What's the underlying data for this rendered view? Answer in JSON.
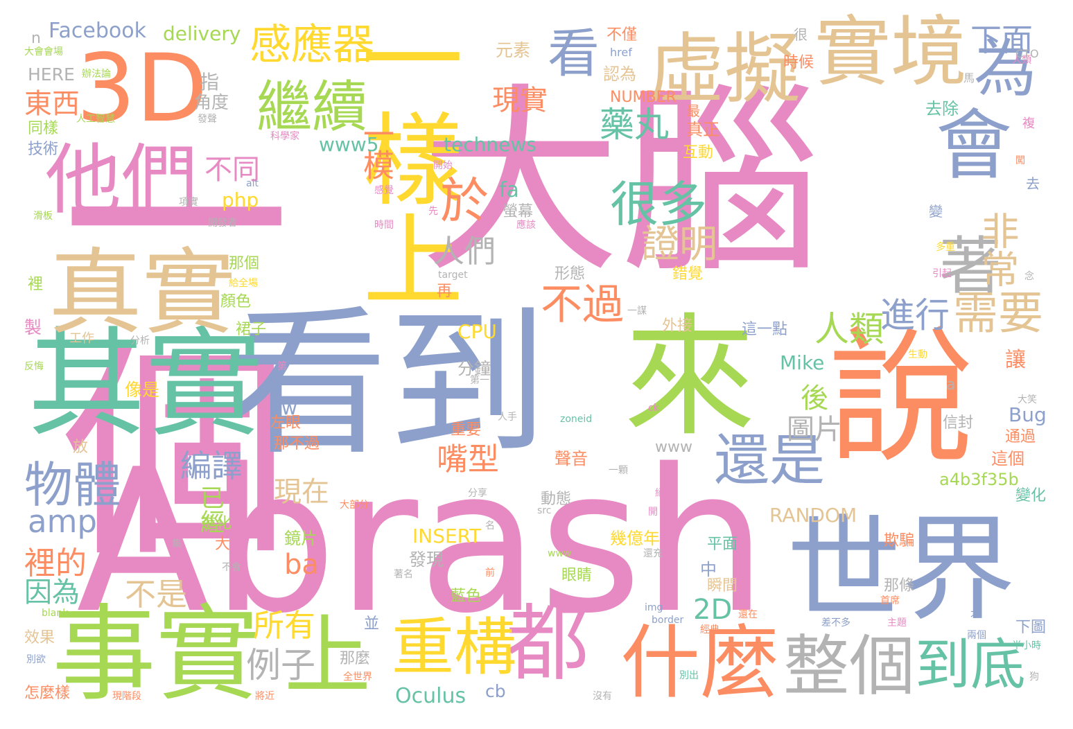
{
  "colors": {
    "pink": "#e78ac3",
    "orange": "#fc8d62",
    "teal": "#66c2a5",
    "blue": "#8da0cb",
    "green": "#a6d854",
    "yellow": "#ffd92f",
    "tan": "#e5c494",
    "gray": "#b3b3b3"
  },
  "words": [
    {
      "id": "w-danao",
      "text": "大腦",
      "color": "pink"
    },
    {
      "id": "w-yige",
      "text": "一個",
      "color": "pink"
    },
    {
      "id": "w-abrash",
      "text": "Abrash",
      "color": "pink"
    },
    {
      "id": "w-kandao",
      "text": "看到",
      "color": "blue"
    },
    {
      "id": "w-lai",
      "text": "來",
      "color": "green"
    },
    {
      "id": "w-shuo",
      "text": "說",
      "color": "orange"
    },
    {
      "id": "w-qishi",
      "text": "其實",
      "color": "teal"
    },
    {
      "id": "w-shishi",
      "text": "事實",
      "color": "green"
    },
    {
      "id": "w-zhenshi",
      "text": "真實",
      "color": "tan"
    },
    {
      "id": "w-3d",
      "text": "3D",
      "color": "orange"
    },
    {
      "id": "w-yiyangshang",
      "text": "一樣上",
      "color": "yellow"
    },
    {
      "id": "w-xuni",
      "text": "虛擬",
      "color": "tan"
    },
    {
      "id": "w-shijing",
      "text": "實境",
      "color": "tan"
    },
    {
      "id": "w-tamen",
      "text": "他們",
      "color": "pink"
    },
    {
      "id": "w-shijie",
      "text": "世界",
      "color": "blue"
    },
    {
      "id": "w-hui",
      "text": "會",
      "color": "blue"
    },
    {
      "id": "w-zhe",
      "text": "著",
      "color": "gray"
    },
    {
      "id": "w-wei",
      "text": "為",
      "color": "blue"
    },
    {
      "id": "w-kan",
      "text": "看",
      "color": "blue"
    },
    {
      "id": "w-dou",
      "text": "都",
      "color": "pink"
    },
    {
      "id": "w-shenme",
      "text": "什麼",
      "color": "orange"
    },
    {
      "id": "w-zhengge",
      "text": "整個",
      "color": "gray"
    },
    {
      "id": "w-zhonggou",
      "text": "重構",
      "color": "yellow"
    },
    {
      "id": "w-shang",
      "text": "上",
      "color": "green"
    },
    {
      "id": "w-daodi",
      "text": "到底",
      "color": "teal"
    },
    {
      "id": "w-haishi",
      "text": "還是",
      "color": "blue"
    },
    {
      "id": "w-jixu",
      "text": "繼續",
      "color": "green"
    },
    {
      "id": "w-ganyingqi",
      "text": "感應器",
      "color": "yellow"
    },
    {
      "id": "w-wuti",
      "text": "物體",
      "color": "blue"
    },
    {
      "id": "w-yu",
      "text": "於",
      "color": "orange"
    },
    {
      "id": "w-henduo",
      "text": "很多",
      "color": "teal"
    },
    {
      "id": "w-buguo",
      "text": "不過",
      "color": "orange"
    },
    {
      "id": "w-yaowan",
      "text": "藥丸",
      "color": "teal"
    },
    {
      "id": "w-zhengming",
      "text": "證明",
      "color": "tan"
    },
    {
      "id": "w-feichang",
      "text": "非常",
      "color": "tan"
    },
    {
      "id": "w-xuyao",
      "text": "需要",
      "color": "tan"
    },
    {
      "id": "w-jinxing",
      "text": "進行",
      "color": "blue"
    },
    {
      "id": "w-renlei",
      "text": "人類",
      "color": "green"
    },
    {
      "id": "w-renmen",
      "text": "人們",
      "color": "gray"
    },
    {
      "id": "w-dongxi",
      "text": "東西",
      "color": "orange"
    },
    {
      "id": "w-xiamian",
      "text": "下面",
      "color": "blue"
    },
    {
      "id": "w-yimo",
      "text": "一模",
      "color": "orange"
    },
    {
      "id": "w-xianshi",
      "text": "現實",
      "color": "orange"
    },
    {
      "id": "w-butong",
      "text": "不同",
      "color": "pink"
    },
    {
      "id": "w-amp",
      "text": "amp",
      "color": "blue"
    },
    {
      "id": "w-bianyi",
      "text": "編譯",
      "color": "blue"
    },
    {
      "id": "w-lide",
      "text": "裡的",
      "color": "orange"
    },
    {
      "id": "w-yinwei",
      "text": "因為",
      "color": "teal"
    },
    {
      "id": "w-bushi",
      "text": "不是",
      "color": "tan"
    },
    {
      "id": "w-suoyou",
      "text": "所有",
      "color": "yellow"
    },
    {
      "id": "w-lizi",
      "text": "例子",
      "color": "gray"
    },
    {
      "id": "w-2d",
      "text": "2D",
      "color": "teal"
    },
    {
      "id": "w-hou",
      "text": "後",
      "color": "green"
    },
    {
      "id": "w-zuixing",
      "text": "嘴型",
      "color": "orange"
    },
    {
      "id": "w-tupian",
      "text": "圖片",
      "color": "gray"
    },
    {
      "id": "w-xianzai",
      "text": "現在",
      "color": "tan"
    },
    {
      "id": "w-yijing",
      "text": "已經",
      "color": "green"
    },
    {
      "id": "w-ba",
      "text": "ba",
      "color": "orange"
    },
    {
      "id": "w-oculus",
      "text": "Oculus",
      "color": "teal"
    },
    {
      "id": "w-cb",
      "text": "cb",
      "color": "blue"
    },
    {
      "id": "w-facebook",
      "text": "Facebook",
      "color": "blue"
    },
    {
      "id": "w-delivery",
      "text": "delivery",
      "color": "green"
    },
    {
      "id": "w-technews",
      "text": "technews",
      "color": "teal"
    },
    {
      "id": "w-www5",
      "text": "www5",
      "color": "teal"
    },
    {
      "id": "w-php",
      "text": "php",
      "color": "yellow"
    },
    {
      "id": "w-fa",
      "text": "fa",
      "color": "teal"
    },
    {
      "id": "w-cpu",
      "text": "CPU",
      "color": "yellow"
    },
    {
      "id": "w-mike",
      "text": "Mike",
      "color": "teal"
    },
    {
      "id": "w-bug",
      "text": "Bug",
      "color": "blue"
    },
    {
      "id": "w-random",
      "text": "RANDOM",
      "color": "tan"
    },
    {
      "id": "w-insert",
      "text": "INSERT",
      "color": "yellow"
    },
    {
      "id": "w-number",
      "text": "NUMBER",
      "color": "orange"
    },
    {
      "id": "w-a4b3f35b",
      "text": "a4b3f35b",
      "color": "green"
    },
    {
      "id": "w-www",
      "text": "www",
      "color": "gray"
    },
    {
      "id": "w-tw",
      "text": "tw",
      "color": "blue"
    },
    {
      "id": "w-here",
      "text": "HERE",
      "color": "gray"
    },
    {
      "id": "w-n",
      "text": "n",
      "color": "gray"
    },
    {
      "id": "w-yuansu",
      "text": "元素",
      "color": "tan"
    },
    {
      "id": "w-zhi",
      "text": "指",
      "color": "gray"
    },
    {
      "id": "w-jiaodu",
      "text": "角度",
      "color": "gray"
    },
    {
      "id": "w-renwei",
      "text": "認為",
      "color": "tan"
    },
    {
      "id": "w-bujin",
      "text": "不僅",
      "color": "orange"
    },
    {
      "id": "w-zhenzheng",
      "text": "真正",
      "color": "orange"
    },
    {
      "id": "w-hudong",
      "text": "互動",
      "color": "yellow"
    },
    {
      "id": "w-shihou",
      "text": "時候",
      "color": "orange"
    },
    {
      "id": "w-quchu",
      "text": "去除",
      "color": "teal"
    },
    {
      "id": "w-tongyang",
      "text": "同樣",
      "color": "green"
    },
    {
      "id": "w-jishu",
      "text": "技術",
      "color": "blue"
    },
    {
      "id": "w-yingmu",
      "text": "螢幕",
      "color": "gray"
    },
    {
      "id": "w-nage",
      "text": "那個",
      "color": "green"
    },
    {
      "id": "w-yanse",
      "text": "顏色",
      "color": "green"
    },
    {
      "id": "w-qunzi",
      "text": "裙子",
      "color": "green"
    },
    {
      "id": "w-xingtai",
      "text": "形態",
      "color": "gray"
    },
    {
      "id": "w-cuojue",
      "text": "錯覺",
      "color": "yellow"
    },
    {
      "id": "w-waijie",
      "text": "外接",
      "color": "tan"
    },
    {
      "id": "w-zheyidian",
      "text": "這一點",
      "color": "blue"
    },
    {
      "id": "w-fenzhong",
      "text": "分鐘",
      "color": "gray"
    },
    {
      "id": "w-xiangshi",
      "text": "像是",
      "color": "yellow"
    },
    {
      "id": "w-zuoyan",
      "text": "左眼",
      "color": "orange"
    },
    {
      "id": "w-nabuguo",
      "text": "那不過",
      "color": "orange"
    },
    {
      "id": "w-jinhua",
      "text": "進化",
      "color": "green"
    },
    {
      "id": "w-da",
      "text": "大",
      "color": "orange"
    },
    {
      "id": "w-jingpian",
      "text": "鏡片",
      "color": "green"
    },
    {
      "id": "w-faxian",
      "text": "發現",
      "color": "gray"
    },
    {
      "id": "w-jiyinian",
      "text": "幾億年",
      "color": "yellow"
    },
    {
      "id": "w-shengyin",
      "text": "聲音",
      "color": "orange"
    },
    {
      "id": "w-dongtai",
      "text": "動態",
      "color": "gray"
    },
    {
      "id": "w-zhongyao",
      "text": "重要",
      "color": "orange"
    },
    {
      "id": "w-pingmian",
      "text": "平面",
      "color": "teal"
    },
    {
      "id": "w-zhong",
      "text": "中",
      "color": "blue"
    },
    {
      "id": "w-shunjian",
      "text": "瞬間",
      "color": "tan"
    },
    {
      "id": "w-qipian",
      "text": "欺騙",
      "color": "orange"
    },
    {
      "id": "w-natiao",
      "text": "那條",
      "color": "gray"
    },
    {
      "id": "w-yanjing",
      "text": "眼睛",
      "color": "green"
    },
    {
      "id": "w-lanse",
      "text": "藍色",
      "color": "green"
    },
    {
      "id": "w-name",
      "text": "那麼",
      "color": "gray"
    },
    {
      "id": "w-bing",
      "text": "並",
      "color": "blue"
    },
    {
      "id": "w-rang",
      "text": "讓",
      "color": "orange"
    },
    {
      "id": "w-zhege",
      "text": "這個",
      "color": "orange"
    },
    {
      "id": "w-bianhua",
      "text": "變化",
      "color": "teal"
    },
    {
      "id": "w-tongguo",
      "text": "通過",
      "color": "orange"
    },
    {
      "id": "w-xinfeng",
      "text": "信封",
      "color": "gray"
    },
    {
      "id": "w-xiatu",
      "text": "下圖",
      "color": "blue"
    },
    {
      "id": "w-xiaoguo",
      "text": "效果",
      "color": "tan"
    },
    {
      "id": "w-zenmeyang",
      "text": "怎麼樣",
      "color": "orange"
    },
    {
      "id": "w-fang",
      "text": "放",
      "color": "tan"
    },
    {
      "id": "w-zai",
      "text": "再",
      "color": "orange"
    },
    {
      "id": "w-gongzuo",
      "text": "工作",
      "color": "tan"
    },
    {
      "id": "w-zhi2",
      "text": "製",
      "color": "pink"
    },
    {
      "id": "w-li",
      "text": "裡",
      "color": "green"
    },
    {
      "id": "w-a",
      "text": "a",
      "color": "gray"
    },
    {
      "id": "w-hen",
      "text": "很",
      "color": "gray"
    },
    {
      "id": "w-qu",
      "text": "去",
      "color": "blue"
    },
    {
      "id": "w-bian",
      "text": "變",
      "color": "blue"
    },
    {
      "id": "w-fu",
      "text": "複",
      "color": "pink"
    },
    {
      "id": "w-zui",
      "text": "最",
      "color": "orange"
    },
    {
      "id": "w-ma",
      "text": "馬",
      "color": "gray"
    },
    {
      "id": "w-cto",
      "text": "CTO",
      "color": "gray"
    },
    {
      "id": "w-href",
      "text": "href",
      "color": "blue"
    },
    {
      "id": "w-kexuejia",
      "text": "科學家",
      "color": "pink"
    },
    {
      "id": "w-rengongzhihui",
      "text": "人工智慧",
      "color": "green"
    },
    {
      "id": "w-dahuihuichang",
      "text": "大會會場",
      "color": "green"
    },
    {
      "id": "w-banfalun",
      "text": "辦法論",
      "color": "green"
    },
    {
      "id": "w-fasheng",
      "text": "發聲",
      "color": "gray"
    },
    {
      "id": "w-kaishi",
      "text": "開始",
      "color": "pink"
    },
    {
      "id": "w-alt",
      "text": "alt",
      "color": "blue"
    },
    {
      "id": "w-xiangshi2",
      "text": "項實",
      "color": "gray"
    },
    {
      "id": "w-huaban",
      "text": "滑板",
      "color": "green"
    },
    {
      "id": "w-kaifazhe",
      "text": "開發者",
      "color": "gray"
    },
    {
      "id": "w-ganjue",
      "text": "感覺",
      "color": "pink"
    },
    {
      "id": "w-shijian",
      "text": "時間",
      "color": "pink"
    },
    {
      "id": "w-xian",
      "text": "先",
      "color": "pink"
    },
    {
      "id": "w-yinggai",
      "text": "應該",
      "color": "pink"
    },
    {
      "id": "w-target",
      "text": "target",
      "color": "gray"
    },
    {
      "id": "w-yimou",
      "text": "一謀",
      "color": "gray"
    },
    {
      "id": "w-fenxi",
      "text": "分析",
      "color": "gray"
    },
    {
      "id": "w-geiquanchang",
      "text": "給全場",
      "color": "yellow"
    },
    {
      "id": "w-fanhui",
      "text": "反悔",
      "color": "green"
    },
    {
      "id": "w-di",
      "text": "第",
      "color": "pink"
    },
    {
      "id": "w-diyi",
      "text": "第一",
      "color": "gray"
    },
    {
      "id": "w-dabufen",
      "text": "大部分",
      "color": "orange"
    },
    {
      "id": "w-renshou",
      "text": "人手",
      "color": "gray"
    },
    {
      "id": "w-zoneid",
      "text": "zoneid",
      "color": "teal"
    },
    {
      "id": "w-ck",
      "text": "ck",
      "color": "pink"
    },
    {
      "id": "w-yike",
      "text": "一顆",
      "color": "gray"
    },
    {
      "id": "w-fenxiang",
      "text": "分享",
      "color": "gray"
    },
    {
      "id": "w-src",
      "text": "src",
      "color": "gray"
    },
    {
      "id": "w-jue",
      "text": "絕",
      "color": "pink"
    },
    {
      "id": "w-kai",
      "text": "開",
      "color": "pink"
    },
    {
      "id": "w-ji",
      "text": "集",
      "color": "gray"
    },
    {
      "id": "w-ming",
      "text": "名",
      "color": "gray"
    },
    {
      "id": "w-www2",
      "text": "www",
      "color": "green"
    },
    {
      "id": "w-buhui",
      "text": "不會",
      "color": "gray"
    },
    {
      "id": "w-zheming",
      "text": "著名",
      "color": "gray"
    },
    {
      "id": "w-qian",
      "text": "前",
      "color": "orange"
    },
    {
      "id": "w-huanchong",
      "text": "還充",
      "color": "gray"
    },
    {
      "id": "w-blank",
      "text": "blank",
      "color": "green"
    },
    {
      "id": "w-img",
      "text": "img",
      "color": "blue"
    },
    {
      "id": "w-border",
      "text": "border",
      "color": "blue"
    },
    {
      "id": "w-chabuduo",
      "text": "差不多",
      "color": "blue"
    },
    {
      "id": "w-zhuti",
      "text": "主題",
      "color": "pink"
    },
    {
      "id": "w-shouxi",
      "text": "首席",
      "color": "orange"
    },
    {
      "id": "w-cai",
      "text": "才",
      "color": "blue"
    },
    {
      "id": "w-liangge",
      "text": "兩個",
      "color": "blue"
    },
    {
      "id": "w-banxiaoshi",
      "text": "半小時",
      "color": "teal"
    },
    {
      "id": "w-gou",
      "text": "狗",
      "color": "gray"
    },
    {
      "id": "w-bieyu",
      "text": "別欲",
      "color": "blue"
    },
    {
      "id": "w-xianjieduan",
      "text": "現階段",
      "color": "orange"
    },
    {
      "id": "w-jiangjin",
      "text": "將近",
      "color": "orange"
    },
    {
      "id": "w-quanshijie",
      "text": "全世界",
      "color": "orange"
    },
    {
      "id": "w-meiyou",
      "text": "沒有",
      "color": "gray"
    },
    {
      "id": "w-biechu",
      "text": "別出",
      "color": "teal"
    },
    {
      "id": "w-jingdian",
      "text": "經典",
      "color": "orange"
    },
    {
      "id": "w-huanzai",
      "text": "還在",
      "color": "orange"
    },
    {
      "id": "w-shengdong",
      "text": "生動",
      "color": "yellow"
    },
    {
      "id": "w-daxiao",
      "text": "大笑",
      "color": "gray"
    },
    {
      "id": "w-duozhong",
      "text": "多重",
      "color": "yellow"
    },
    {
      "id": "w-yinqi",
      "text": "引起",
      "color": "pink"
    },
    {
      "id": "w-ren",
      "text": "人類",
      "color": "pink"
    },
    {
      "id": "w-chuang",
      "text": "闖",
      "color": "orange"
    },
    {
      "id": "w-nian",
      "text": "念",
      "color": "gray"
    }
  ]
}
